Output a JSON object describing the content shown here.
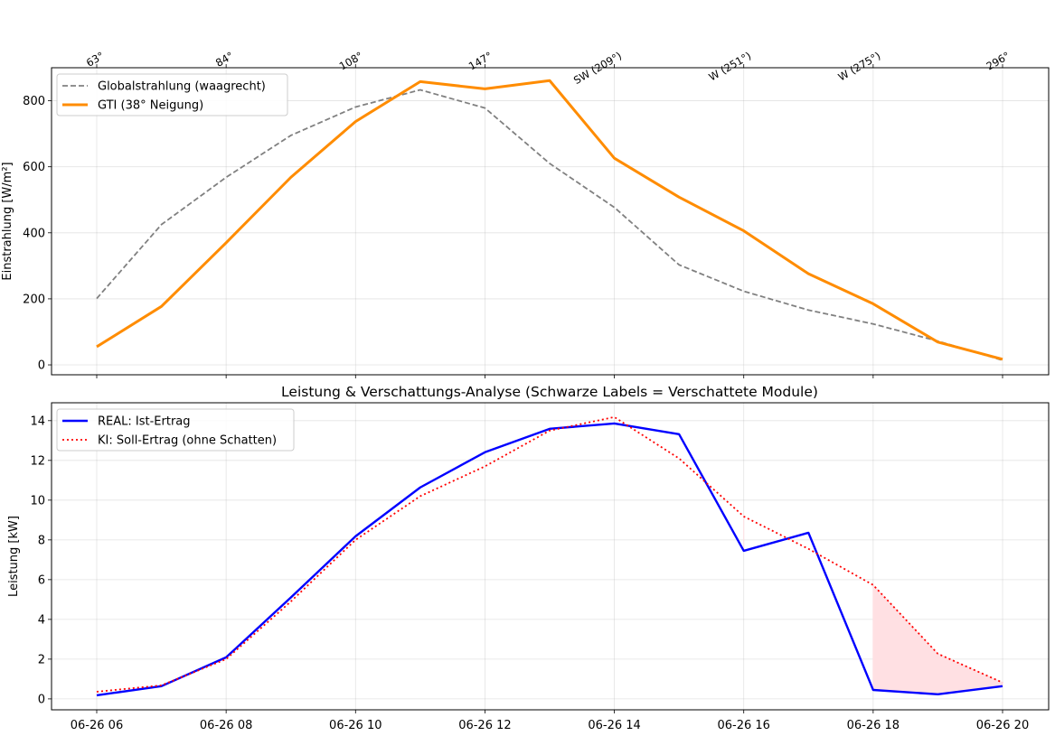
{
  "chart_data": [
    {
      "type": "line",
      "title": "",
      "ylabel": "Einstrahlung [W/m²]",
      "ylim": [
        -30,
        900
      ],
      "yticks": [
        0,
        200,
        400,
        600,
        800
      ],
      "grid": true,
      "legend": "top-left",
      "top_axis_labels": [
        "63°",
        "84°",
        "108°",
        "147°",
        "SW (209°)",
        "W (251°)",
        "W (275°)",
        "296°"
      ],
      "x": [
        "06-26 06",
        "06-26 07",
        "06-26 08",
        "06-26 09",
        "06-26 10",
        "06-26 11",
        "06-26 12",
        "06-26 13",
        "06-26 14",
        "06-26 15",
        "06-26 16",
        "06-26 17",
        "06-26 18",
        "06-26 19",
        "06-26 20"
      ],
      "series": [
        {
          "name": "Globalstrahlung (waagrecht)",
          "color": "#808080",
          "style": "dashed",
          "values": [
            201,
            425,
            568,
            695,
            781,
            833,
            778,
            610,
            477,
            303,
            223,
            166,
            124,
            72,
            14
          ]
        },
        {
          "name": "GTI (38° Neigung)",
          "color": "#ff8c00",
          "style": "solid",
          "values": [
            55,
            177,
            370,
            568,
            737,
            858,
            836,
            861,
            626,
            508,
            406,
            276,
            185,
            69,
            17
          ]
        }
      ]
    },
    {
      "type": "line",
      "title": "Leistung & Verschattungs-Analyse (Schwarze Labels = Verschattete Module)",
      "ylabel": "Leistung [kW]",
      "ylim": [
        -0.55,
        14.9
      ],
      "yticks": [
        0,
        2,
        4,
        6,
        8,
        10,
        12,
        14
      ],
      "xtick_labels": [
        "06-26 06",
        "06-26 08",
        "06-26 10",
        "06-26 12",
        "06-26 14",
        "06-26 16",
        "06-26 18",
        "06-26 20"
      ],
      "grid": true,
      "legend": "top-left",
      "x": [
        "06-26 06",
        "06-26 07",
        "06-26 08",
        "06-26 09",
        "06-26 10",
        "06-26 11",
        "06-26 12",
        "06-26 13",
        "06-26 14",
        "06-26 15",
        "06-26 16",
        "06-26 17",
        "06-26 18",
        "06-26 19",
        "06-26 20"
      ],
      "series": [
        {
          "name": "REAL: Ist-Ertrag",
          "color": "#0000ff",
          "style": "solid",
          "values": [
            0.18,
            0.64,
            2.09,
            5.1,
            8.18,
            10.64,
            12.41,
            13.59,
            13.86,
            13.32,
            7.45,
            8.36,
            0.45,
            0.23,
            0.64
          ]
        },
        {
          "name": "KI: Soll-Ertrag (ohne Schatten)",
          "color": "#ff0000",
          "style": "dotted",
          "values": [
            0.36,
            0.68,
            2.0,
            4.9,
            8.0,
            10.2,
            11.7,
            13.5,
            14.18,
            12.1,
            9.18,
            7.55,
            5.73,
            2.27,
            0.82
          ]
        }
      ],
      "shade_color": "#ffe0e3"
    }
  ]
}
